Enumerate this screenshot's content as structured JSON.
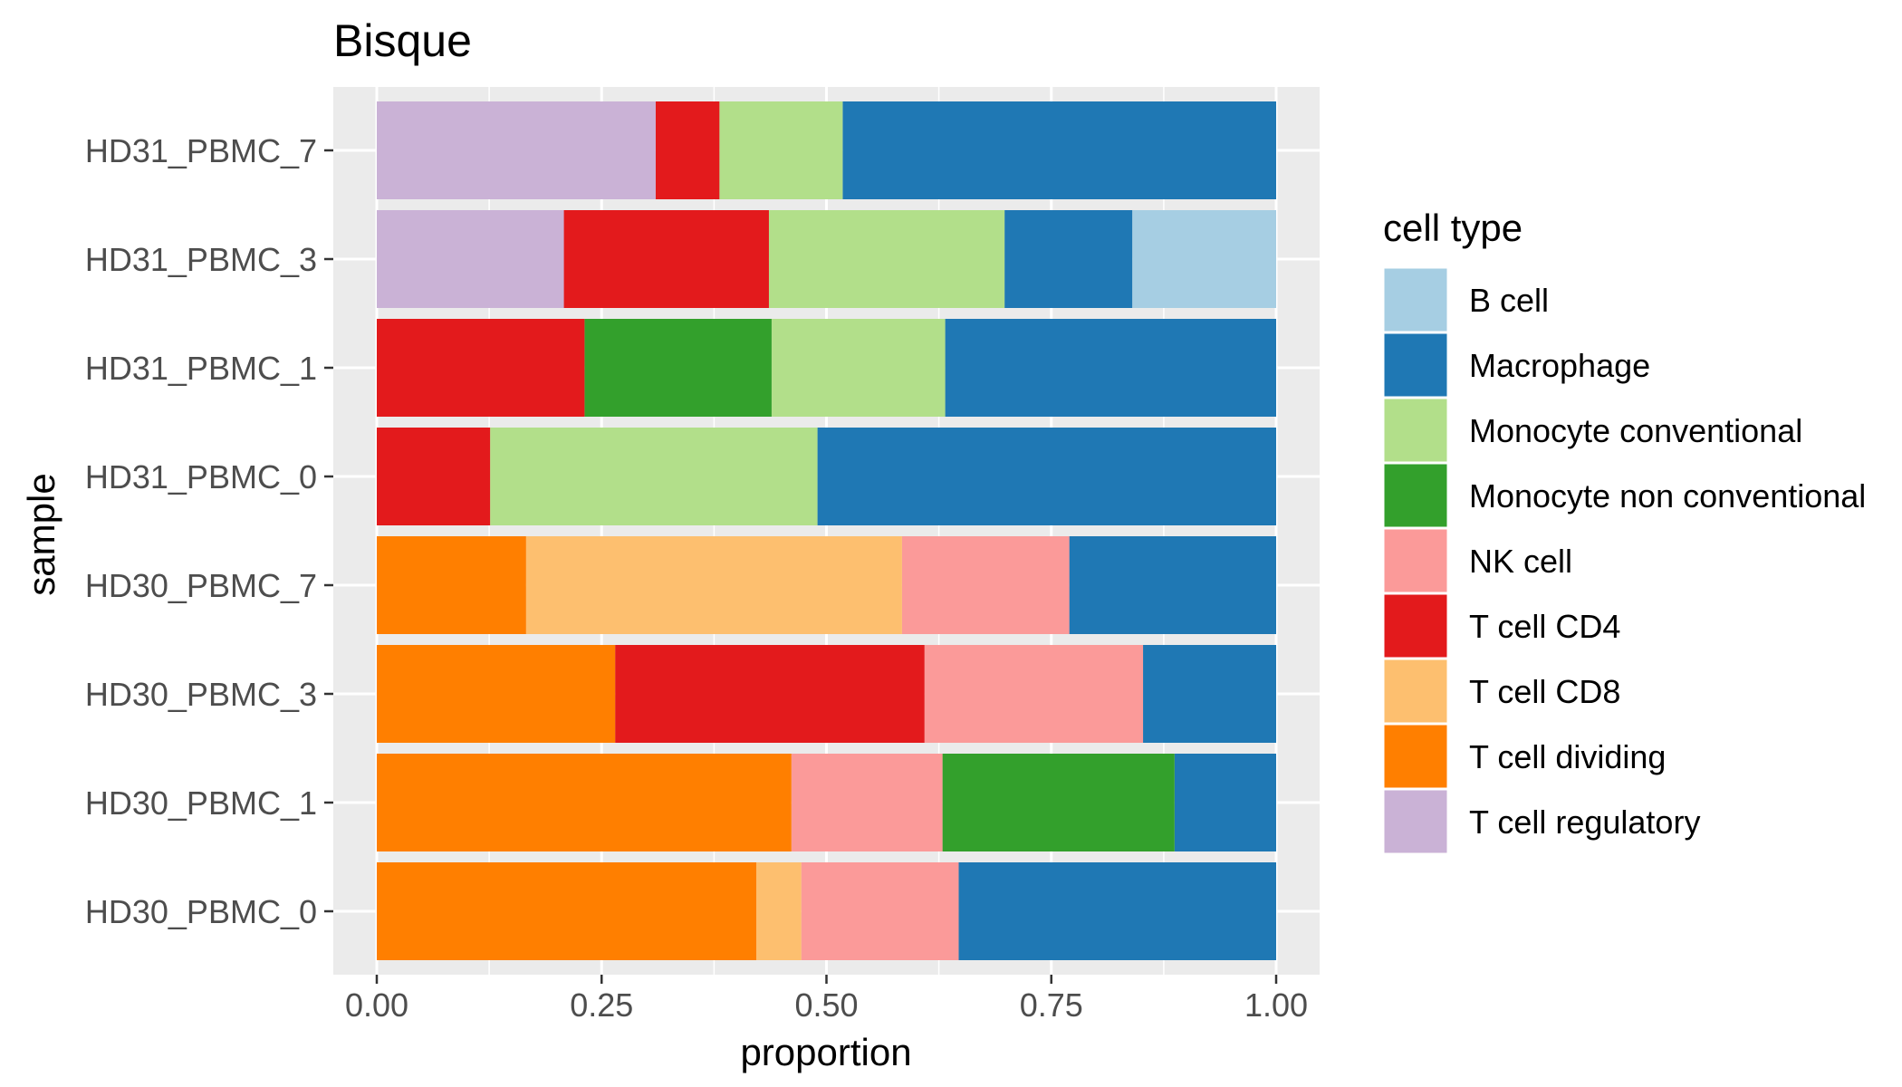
{
  "chart_data": {
    "type": "bar",
    "orientation": "horizontal",
    "stacked": true,
    "title": "Bisque",
    "xlabel": "proportion",
    "ylabel": "sample",
    "xlim": [
      0,
      1
    ],
    "x_ticks": [
      "0.00",
      "0.25",
      "0.50",
      "0.75",
      "1.00"
    ],
    "x_tick_values": [
      0,
      0.25,
      0.5,
      0.75,
      1.0
    ],
    "grid": true,
    "legend_position": "right",
    "legend_title": "cell type",
    "categories": [
      "HD30_PBMC_0",
      "HD30_PBMC_1",
      "HD30_PBMC_3",
      "HD30_PBMC_7",
      "HD31_PBMC_0",
      "HD31_PBMC_1",
      "HD31_PBMC_3",
      "HD31_PBMC_7"
    ],
    "series": [
      {
        "name": "B cell",
        "color": "#a6cee3",
        "values": [
          0,
          0,
          0,
          0,
          0,
          0,
          0.16,
          0
        ]
      },
      {
        "name": "Macrophage",
        "color": "#1f78b4",
        "values": [
          0.353,
          0.113,
          0.148,
          0.23,
          0.51,
          0.368,
          0.142,
          0.482
        ]
      },
      {
        "name": "Monocyte conventional",
        "color": "#b2df8a",
        "values": [
          0,
          0,
          0,
          0,
          0.364,
          0.193,
          0.262,
          0.137
        ]
      },
      {
        "name": "Monocyte non conventional",
        "color": "#33a02c",
        "values": [
          0,
          0.258,
          0,
          0,
          0,
          0.208,
          0,
          0
        ]
      },
      {
        "name": "NK cell",
        "color": "#fb9a99",
        "values": [
          0.175,
          0.168,
          0.243,
          0.186,
          0,
          0,
          0,
          0
        ]
      },
      {
        "name": "T cell CD4",
        "color": "#e31a1c",
        "values": [
          0,
          0,
          0.344,
          0,
          0.126,
          0.231,
          0.228,
          0.071
        ]
      },
      {
        "name": "T cell CD8",
        "color": "#fdbf6f",
        "values": [
          0.05,
          0,
          0,
          0.418,
          0,
          0,
          0,
          0
        ]
      },
      {
        "name": "T cell dividing",
        "color": "#ff7f00",
        "values": [
          0.422,
          0.461,
          0.265,
          0.166,
          0,
          0,
          0,
          0
        ]
      },
      {
        "name": "T cell regulatory",
        "color": "#cab2d6",
        "values": [
          0,
          0,
          0,
          0,
          0,
          0,
          0.208,
          0.31
        ]
      }
    ]
  },
  "style": {
    "panel_bg": "#ebebeb",
    "grid_color": "#ffffff",
    "tick_color": "#333333",
    "legend_key_border": "#ffffff"
  }
}
